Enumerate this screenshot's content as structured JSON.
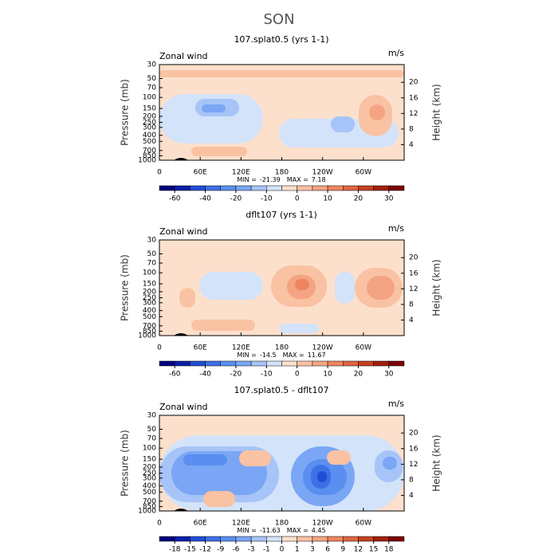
{
  "figure_title": "SON",
  "chart_data": [
    {
      "type": "contour",
      "title": "107.splat0.5 (yrs 1-1)",
      "left_label": "Zonal wind",
      "right_label": "m/s",
      "ylabel": "Pressure (mb)",
      "y2label": "Height (km)",
      "ylog": true,
      "ylim": [
        1000,
        30
      ],
      "yticks": [
        30,
        50,
        70,
        100,
        150,
        200,
        250,
        300,
        400,
        500,
        700,
        850,
        1000
      ],
      "y2ticks": [
        4,
        8,
        12,
        16,
        20
      ],
      "xlim": [
        0,
        360
      ],
      "xticks": [
        0,
        {
          "value": 60,
          "label": "60E"
        },
        {
          "value": 120,
          "label": "120E"
        },
        180,
        {
          "value": 240,
          "label": "120W"
        },
        {
          "value": 300,
          "label": "60W"
        }
      ],
      "min_label": "MIN =",
      "min": -21.39,
      "max_label": "MAX =",
      "max": 7.18,
      "colorbar": {
        "ticks": [
          -60,
          -40,
          -20,
          -10,
          0,
          10,
          20,
          30
        ],
        "colors": [
          "#000080",
          "#0a1fa8",
          "#1f4fd4",
          "#3d6fe6",
          "#5a8ff0",
          "#7aa6f5",
          "#a6c4f7",
          "#d3e3fa",
          "#fde0cc",
          "#f9c2a3",
          "#f4a482",
          "#ee8560",
          "#e06540",
          "#c8401f",
          "#a3200b",
          "#7a0403"
        ]
      }
    },
    {
      "type": "contour",
      "title": "dflt107 (yrs 1-1)",
      "left_label": "Zonal wind",
      "right_label": "m/s",
      "ylabel": "Pressure (mb)",
      "y2label": "Height (km)",
      "ylog": true,
      "ylim": [
        1000,
        30
      ],
      "yticks": [
        30,
        50,
        70,
        100,
        150,
        200,
        250,
        300,
        400,
        500,
        700,
        850,
        1000
      ],
      "y2ticks": [
        4,
        8,
        12,
        16,
        20
      ],
      "xlim": [
        0,
        360
      ],
      "xticks": [
        0,
        {
          "value": 60,
          "label": "60E"
        },
        {
          "value": 120,
          "label": "120E"
        },
        180,
        {
          "value": 240,
          "label": "120W"
        },
        {
          "value": 300,
          "label": "60W"
        }
      ],
      "min_label": "MIN =",
      "min": -14.5,
      "max_label": "MAX =",
      "max": 11.67,
      "colorbar": {
        "ticks": [
          -60,
          -40,
          -20,
          -10,
          0,
          10,
          20,
          30
        ],
        "colors": [
          "#000080",
          "#0a1fa8",
          "#1f4fd4",
          "#3d6fe6",
          "#5a8ff0",
          "#7aa6f5",
          "#a6c4f7",
          "#d3e3fa",
          "#fde0cc",
          "#f9c2a3",
          "#f4a482",
          "#ee8560",
          "#e06540",
          "#c8401f",
          "#a3200b",
          "#7a0403"
        ]
      }
    },
    {
      "type": "contour",
      "title": "107.splat0.5 - dflt107",
      "left_label": "Zonal wind",
      "right_label": "m/s",
      "ylabel": "Pressure (mb)",
      "y2label": "Height (km)",
      "ylog": true,
      "ylim": [
        1000,
        30
      ],
      "yticks": [
        30,
        50,
        70,
        100,
        150,
        200,
        250,
        300,
        400,
        500,
        700,
        850,
        1000
      ],
      "y2ticks": [
        4,
        8,
        12,
        16,
        20
      ],
      "xlim": [
        0,
        360
      ],
      "xticks": [
        0,
        {
          "value": 60,
          "label": "60E"
        },
        {
          "value": 120,
          "label": "120E"
        },
        180,
        {
          "value": 240,
          "label": "120W"
        },
        {
          "value": 300,
          "label": "60W"
        }
      ],
      "min_label": "MIN =",
      "min": -11.63,
      "max_label": "MAX =",
      "max": 4.45,
      "colorbar": {
        "ticks": [
          -18,
          -15,
          -12,
          -9,
          -6,
          -3,
          -1,
          0,
          1,
          3,
          6,
          9,
          12,
          15,
          18
        ],
        "colors": [
          "#000080",
          "#0a1fa8",
          "#1f4fd4",
          "#3d6fe6",
          "#5a8ff0",
          "#7aa6f5",
          "#a6c4f7",
          "#d3e3fa",
          "#fde0cc",
          "#f9c2a3",
          "#f4a482",
          "#ee8560",
          "#e06540",
          "#c8401f",
          "#a3200b",
          "#7a0403"
        ]
      }
    }
  ]
}
